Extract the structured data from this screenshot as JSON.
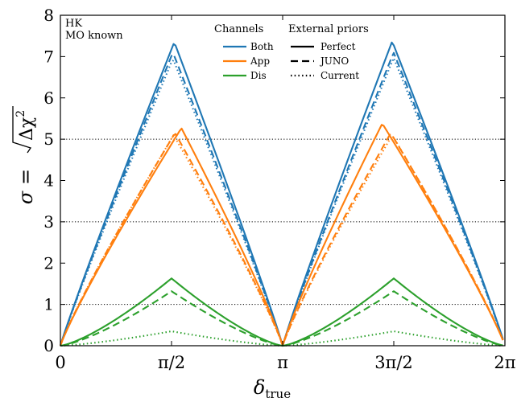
{
  "chart_data": {
    "type": "line",
    "annotations": [
      "HK",
      "MO known"
    ],
    "xlabel": "δtrue",
    "ylabel": "σ = √Δχ²",
    "xlim": [
      0,
      6.2832
    ],
    "ylim": [
      0,
      8
    ],
    "xticks": [
      {
        "value": 0,
        "label": "0"
      },
      {
        "value": 1.5708,
        "label": "π/2"
      },
      {
        "value": 3.1416,
        "label": "π"
      },
      {
        "value": 4.7124,
        "label": "3π/2"
      },
      {
        "value": 6.2832,
        "label": "2π"
      }
    ],
    "yticks": [
      0,
      1,
      2,
      3,
      4,
      5,
      6,
      7,
      8
    ],
    "grid": {
      "y_dotted_at": [
        1,
        3,
        5
      ]
    },
    "legend": {
      "placement": "top-right",
      "channels_title": "Channels",
      "priors_title": "External priors",
      "channels": [
        {
          "name": "Both",
          "color": "#1f77b4"
        },
        {
          "name": "App",
          "color": "#ff7f0e"
        },
        {
          "name": "Dis",
          "color": "#2ca02c"
        }
      ],
      "priors": [
        {
          "name": "Perfect",
          "style": "solid"
        },
        {
          "name": "JUNO",
          "style": "dashed"
        },
        {
          "name": "Current",
          "style": "dotted"
        }
      ]
    },
    "series": [
      {
        "name": "Both Perfect",
        "channel": "Both",
        "prior": "Perfect",
        "color": "#1f77b4",
        "style": "solid",
        "peaks": [
          7.35,
          7.37
        ],
        "peak_x": [
          1.61,
          4.69
        ]
      },
      {
        "name": "Both JUNO",
        "channel": "Both",
        "prior": "JUNO",
        "color": "#1f77b4",
        "style": "dashed",
        "peaks": [
          7.1,
          7.1
        ],
        "peak_x": [
          1.59,
          4.71
        ]
      },
      {
        "name": "Both Current",
        "channel": "Both",
        "prior": "Current",
        "color": "#1f77b4",
        "style": "dotted",
        "peaks": [
          6.95,
          6.97
        ],
        "peak_x": [
          1.59,
          4.71
        ]
      },
      {
        "name": "App Perfect",
        "channel": "App",
        "prior": "Perfect",
        "color": "#ff7f0e",
        "style": "solid",
        "peaks": [
          5.27,
          5.38
        ],
        "peak_x": [
          1.71,
          4.55
        ]
      },
      {
        "name": "App JUNO",
        "channel": "App",
        "prior": "JUNO",
        "color": "#ff7f0e",
        "style": "dashed",
        "peaks": [
          5.15,
          5.15
        ],
        "peak_x": [
          1.62,
          4.67
        ]
      },
      {
        "name": "App Current",
        "channel": "App",
        "prior": "Current",
        "color": "#ff7f0e",
        "style": "dotted",
        "peaks": [
          5.1,
          5.1
        ],
        "peak_x": [
          1.6,
          4.69
        ]
      },
      {
        "name": "Dis Perfect",
        "channel": "Dis",
        "prior": "Perfect",
        "color": "#2ca02c",
        "style": "solid",
        "peaks": [
          1.63,
          1.63
        ],
        "peak_x": [
          1.5708,
          4.7124
        ]
      },
      {
        "name": "Dis JUNO",
        "channel": "Dis",
        "prior": "JUNO",
        "color": "#2ca02c",
        "style": "dashed",
        "peaks": [
          1.32,
          1.32
        ],
        "peak_x": [
          1.5708,
          4.7124
        ]
      },
      {
        "name": "Dis Current",
        "channel": "Dis",
        "prior": "Current",
        "color": "#2ca02c",
        "style": "dotted",
        "peaks": [
          0.35,
          0.35
        ],
        "peak_x": [
          1.5708,
          4.7124
        ]
      }
    ]
  }
}
